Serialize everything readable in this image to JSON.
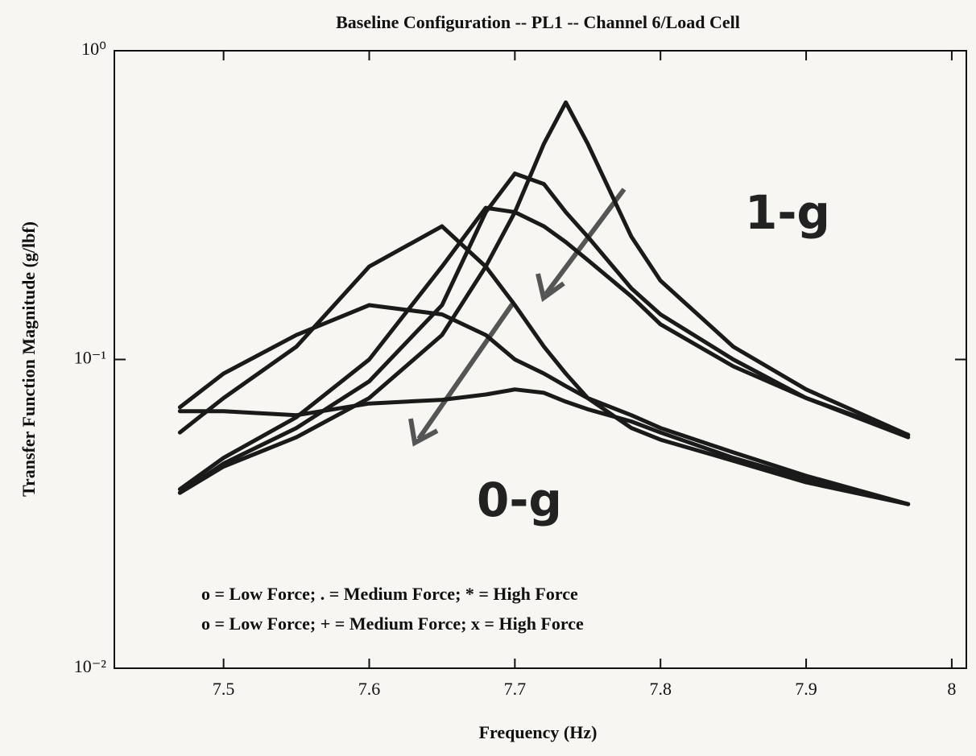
{
  "chart_data": {
    "type": "line",
    "title": "Baseline Configuration -- PL1  -- Channel 6/Load Cell",
    "x_label": "Frequency (Hz)",
    "y_label": "Transfer Function Magnitude (g/lbf)",
    "log_y": true,
    "color": "#1a1a1a",
    "xlim": [
      7.425,
      8.01
    ],
    "ylim": [
      0.01,
      1
    ],
    "xticks": [
      7.5,
      7.6,
      7.7,
      7.8,
      7.9,
      8
    ],
    "yticks": [
      {
        "value": 0.01,
        "label": "10⁻²"
      },
      {
        "value": 0.1,
        "label": "10⁻¹"
      },
      {
        "value": 1,
        "label": "10⁰"
      }
    ],
    "x": [
      7.47,
      7.5,
      7.55,
      7.6,
      7.65,
      7.68,
      7.7,
      7.72,
      7.735,
      7.75,
      7.78,
      7.8,
      7.85,
      7.9,
      7.97
    ],
    "series": [
      {
        "values": [
          0.037,
          0.045,
          0.056,
          0.075,
          0.12,
          0.2,
          0.3,
          0.5,
          0.68,
          0.5,
          0.25,
          0.18,
          0.11,
          0.08,
          0.057
        ]
      },
      {
        "values": [
          0.037,
          0.046,
          0.06,
          0.085,
          0.15,
          0.3,
          0.4,
          0.37,
          0.3,
          0.25,
          0.17,
          0.14,
          0.1,
          0.075,
          0.057
        ]
      },
      {
        "values": [
          0.038,
          0.048,
          0.065,
          0.1,
          0.2,
          0.31,
          0.3,
          0.27,
          0.24,
          0.21,
          0.16,
          0.13,
          0.095,
          0.075,
          0.056
        ]
      },
      {
        "values": [
          0.058,
          0.075,
          0.11,
          0.2,
          0.27,
          0.2,
          0.15,
          0.11,
          0.09,
          0.075,
          0.06,
          0.055,
          0.047,
          0.04,
          0.034
        ]
      },
      {
        "values": [
          0.07,
          0.09,
          0.12,
          0.15,
          0.14,
          0.12,
          0.1,
          0.09,
          0.082,
          0.075,
          0.066,
          0.06,
          0.05,
          0.042,
          0.034
        ]
      },
      {
        "values": [
          0.068,
          0.068,
          0.066,
          0.072,
          0.074,
          0.077,
          0.08,
          0.078,
          0.073,
          0.069,
          0.063,
          0.058,
          0.048,
          0.041,
          0.034
        ]
      }
    ],
    "annotations": [
      "1-g",
      "0-g",
      "o = Low Force;  . = Medium Force;  * = High Force",
      "o = Low Force;  + = Medium Force;  x = High Force"
    ]
  }
}
